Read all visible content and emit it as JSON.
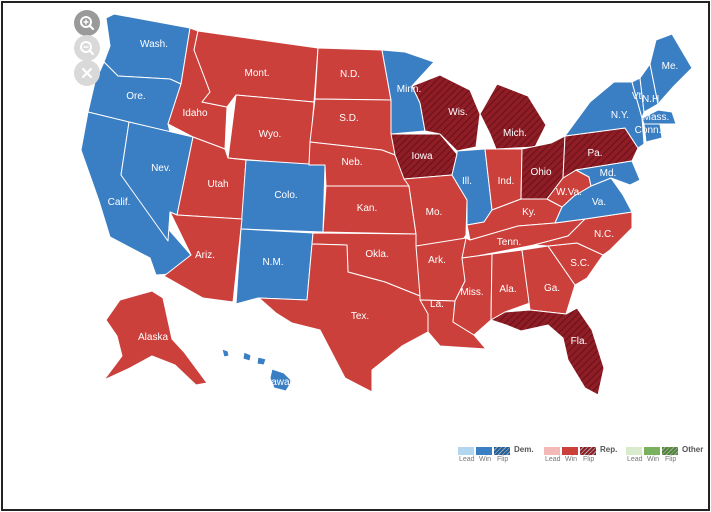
{
  "colors": {
    "dem_win": "#3a7ec3",
    "rep_win": "#cc403c",
    "rep_flip": "#8f1d26",
    "dem_lead": "#b2d6ee",
    "dem_flip": "#1e5f9e",
    "rep_lead": "#f2b9b6",
    "other_lead": "#d8eccb",
    "other_win": "#79b15c",
    "other_flip": "#4e8a35",
    "border": "#ffffff"
  },
  "zoom_controls": [
    {
      "name": "zoom-in",
      "icon": "zoom-in-icon"
    },
    {
      "name": "zoom-out",
      "icon": "zoom-out-icon"
    },
    {
      "name": "reset",
      "icon": "close-icon"
    }
  ],
  "states": {
    "wash": {
      "label": "Wash.",
      "result": "dem_win"
    },
    "ore": {
      "label": "Ore.",
      "result": "dem_win"
    },
    "calif": {
      "label": "Calif.",
      "result": "dem_win"
    },
    "nev": {
      "label": "Nev.",
      "result": "dem_win"
    },
    "idaho": {
      "label": "Idaho",
      "result": "rep_win"
    },
    "mont": {
      "label": "Mont.",
      "result": "rep_win"
    },
    "wyo": {
      "label": "Wyo.",
      "result": "rep_win"
    },
    "utah": {
      "label": "Utah",
      "result": "rep_win"
    },
    "colo": {
      "label": "Colo.",
      "result": "dem_win"
    },
    "ariz": {
      "label": "Ariz.",
      "result": "rep_win"
    },
    "nm": {
      "label": "N.M.",
      "result": "dem_win"
    },
    "nd": {
      "label": "N.D.",
      "result": "rep_win"
    },
    "sd": {
      "label": "S.D.",
      "result": "rep_win"
    },
    "neb": {
      "label": "Neb.",
      "result": "rep_win"
    },
    "kan": {
      "label": "Kan.",
      "result": "rep_win"
    },
    "okla": {
      "label": "Okla.",
      "result": "rep_win"
    },
    "tex": {
      "label": "Tex.",
      "result": "rep_win"
    },
    "minn": {
      "label": "Minn.",
      "result": "dem_win"
    },
    "iowa": {
      "label": "Iowa",
      "result": "rep_flip"
    },
    "mo": {
      "label": "Mo.",
      "result": "rep_win"
    },
    "ark": {
      "label": "Ark.",
      "result": "rep_win"
    },
    "la": {
      "label": "La.",
      "result": "rep_win"
    },
    "wis": {
      "label": "Wis.",
      "result": "rep_flip"
    },
    "ill": {
      "label": "Ill.",
      "result": "dem_win"
    },
    "mich": {
      "label": "Mich.",
      "result": "rep_flip"
    },
    "ind": {
      "label": "Ind.",
      "result": "rep_win"
    },
    "ohio": {
      "label": "Ohio",
      "result": "rep_flip"
    },
    "ky": {
      "label": "Ky.",
      "result": "rep_win"
    },
    "tenn": {
      "label": "Tenn.",
      "result": "rep_win"
    },
    "miss": {
      "label": "Miss.",
      "result": "rep_win"
    },
    "ala": {
      "label": "Ala.",
      "result": "rep_win"
    },
    "ga": {
      "label": "Ga.",
      "result": "rep_win"
    },
    "fla": {
      "label": "Fla.",
      "result": "rep_flip"
    },
    "sc": {
      "label": "S.C.",
      "result": "rep_win"
    },
    "nc": {
      "label": "N.C.",
      "result": "rep_win"
    },
    "va": {
      "label": "Va.",
      "result": "dem_win"
    },
    "wva": {
      "label": "W.Va.",
      "result": "rep_win"
    },
    "pa": {
      "label": "Pa.",
      "result": "rep_flip"
    },
    "md": {
      "label": "Md.",
      "result": "dem_win"
    },
    "ny": {
      "label": "N.Y.",
      "result": "dem_win"
    },
    "vt": {
      "label": "Vt.",
      "result": "dem_win"
    },
    "nh": {
      "label": "N.H.",
      "result": "dem_win"
    },
    "me": {
      "label": "Me.",
      "result": "dem_win"
    },
    "mass": {
      "label": "Mass.",
      "result": "dem_win"
    },
    "conn": {
      "label": "Conn.",
      "result": "dem_win"
    },
    "alaska": {
      "label": "Alaska",
      "result": "rep_win"
    },
    "hawaii": {
      "label": "Hawaii",
      "result": "dem_win"
    }
  },
  "legend": {
    "groups": [
      {
        "party": "Dem.",
        "keys": [
          "dem_lead",
          "dem_win",
          "dem_flip"
        ],
        "subs": [
          "Lead",
          "Win",
          "Flip"
        ]
      },
      {
        "party": "Rep.",
        "keys": [
          "rep_lead",
          "rep_win",
          "rep_flip"
        ],
        "subs": [
          "Lead",
          "Win",
          "Flip"
        ]
      },
      {
        "party": "Other",
        "keys": [
          "other_lead",
          "other_win",
          "other_flip"
        ],
        "subs": [
          "Lead",
          "Win",
          "Flip"
        ]
      }
    ]
  }
}
